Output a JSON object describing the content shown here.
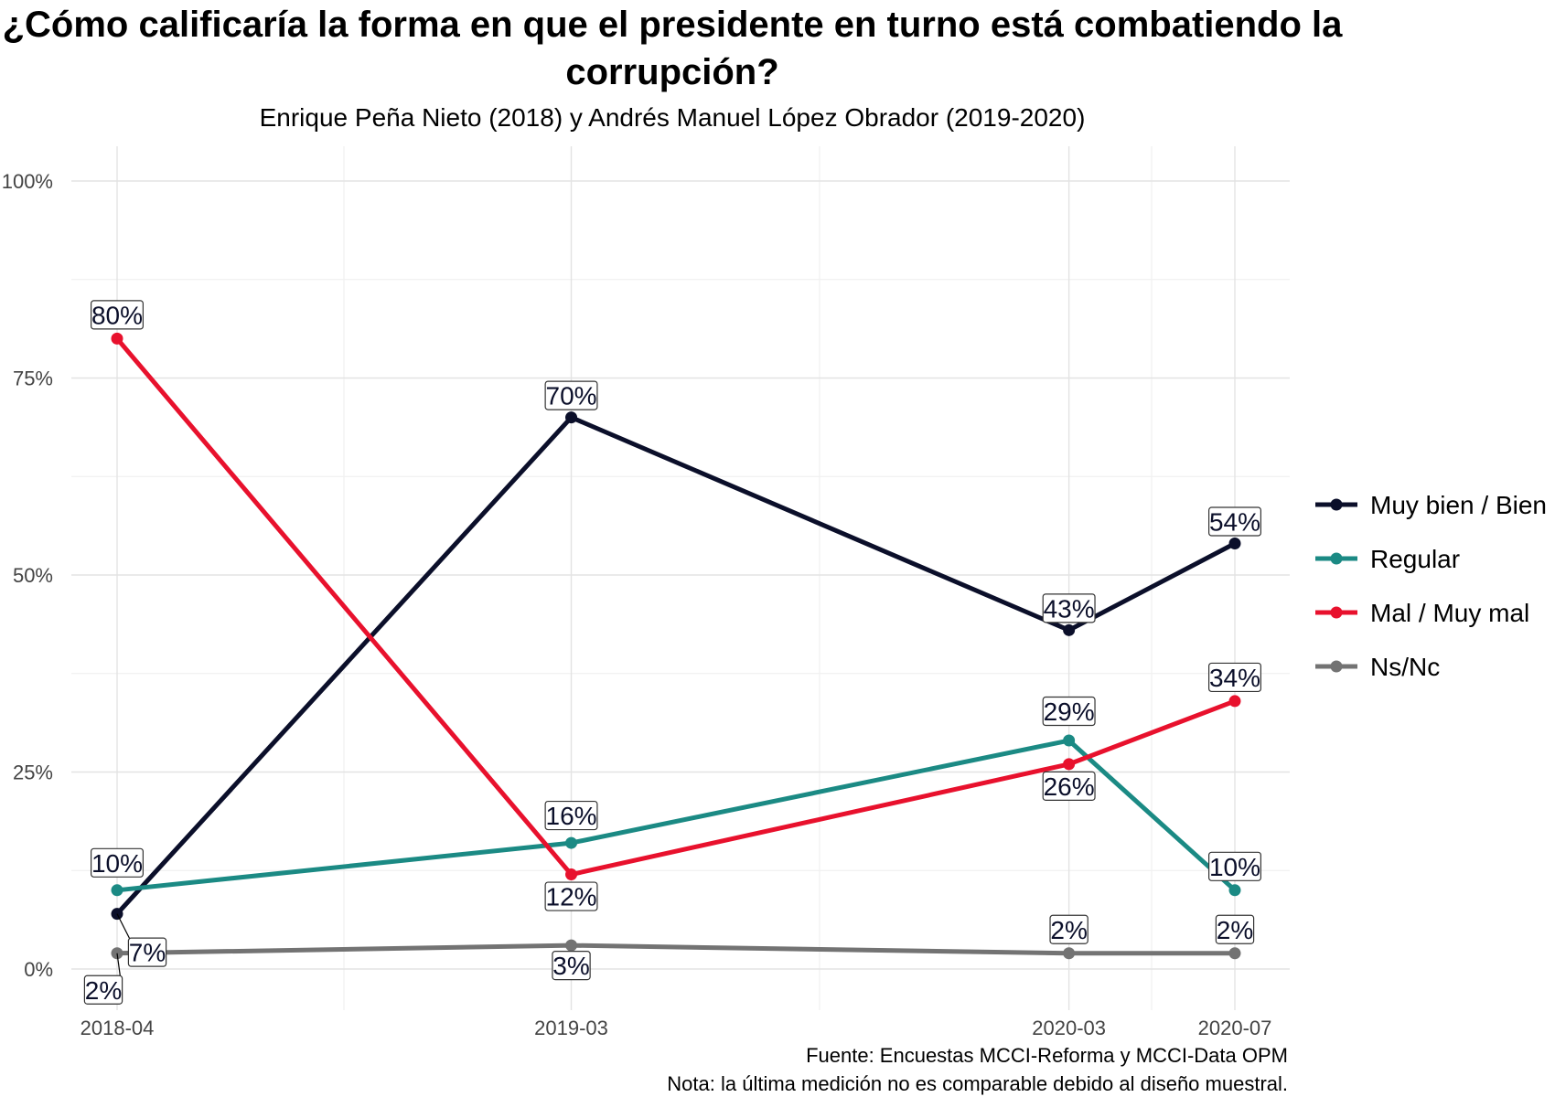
{
  "chart_data": {
    "type": "line",
    "title_line1": "¿Cómo calificaría la forma en que el presidente en turno está combatiendo la",
    "title_line2": "corrupción?",
    "subtitle": "Enrique Peña Nieto (2018) y Andrés Manuel López Obrador (2019-2020)",
    "caption_line1": "Fuente: Encuestas MCCI-Reforma y MCCI-Data OPM",
    "caption_line2": "Nota: la última medición no es comparable debido al diseño muestral.",
    "x": [
      "2018-04",
      "2019-03",
      "2020-03",
      "2020-07"
    ],
    "x_dates": [
      "2018-04-01",
      "2019-03-01",
      "2020-03-01",
      "2020-07-01"
    ],
    "y_ticks": [
      "0%",
      "25%",
      "50%",
      "75%",
      "100%"
    ],
    "ylim": [
      0,
      100
    ],
    "grid": true,
    "legend_position": "right",
    "series": [
      {
        "name": "Muy bien / Bien",
        "color": "#0b0f2a",
        "values": [
          7,
          70,
          43,
          54
        ],
        "labels": [
          "7%",
          "70%",
          "43%",
          "54%"
        ]
      },
      {
        "name": "Regular",
        "color": "#1b8a84",
        "values": [
          10,
          16,
          29,
          10
        ],
        "labels": [
          "10%",
          "16%",
          "29%",
          "10%"
        ]
      },
      {
        "name": "Mal / Muy mal",
        "color": "#e8112d",
        "values": [
          80,
          12,
          26,
          34
        ],
        "labels": [
          "80%",
          "12%",
          "26%",
          "34%"
        ]
      },
      {
        "name": "Ns/Nc",
        "color": "#737373",
        "values": [
          2,
          3,
          2,
          2
        ],
        "labels": [
          "2%",
          "3%",
          "2%",
          "2%"
        ]
      }
    ]
  }
}
